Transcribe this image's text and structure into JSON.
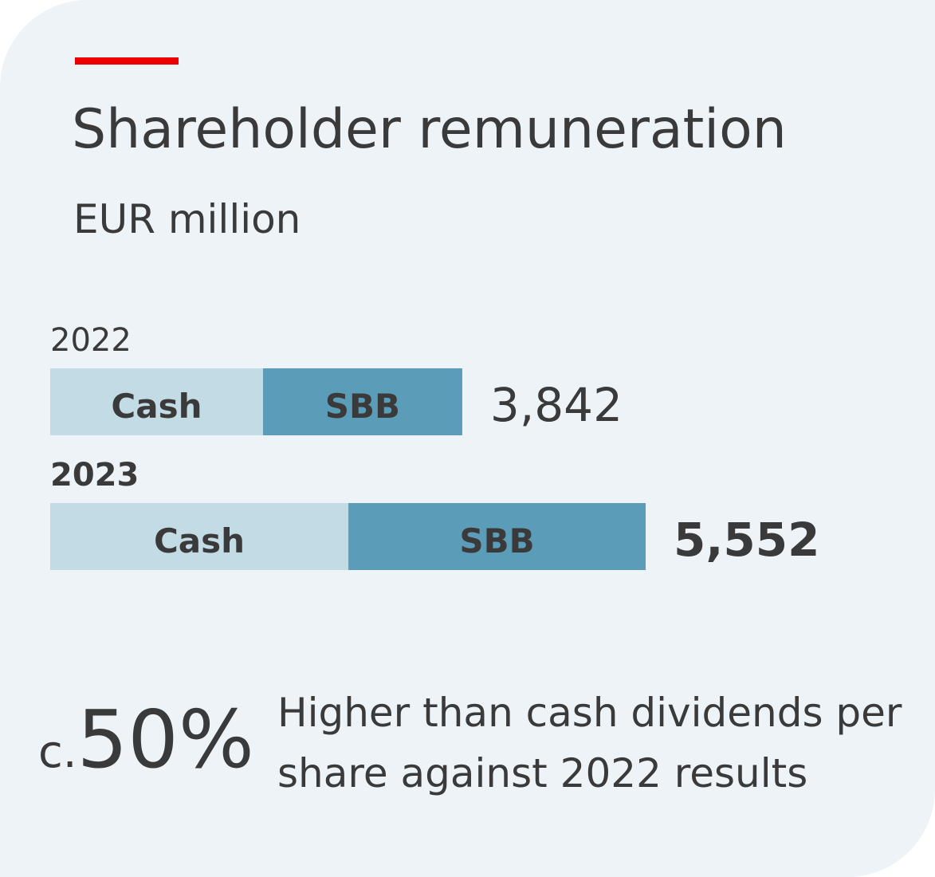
{
  "chart_data": {
    "type": "stacked-bar-horizontal",
    "title": "Shareholder remuneration",
    "subtitle": "EUR million",
    "categories": [
      "2022",
      "2023"
    ],
    "series": [
      {
        "name": "Cash",
        "color": "#c2dbe5",
        "values": [
          1984,
          2780
        ]
      },
      {
        "name": "SBB",
        "color": "#5b9db9",
        "values": [
          1858,
          2772
        ]
      }
    ],
    "totals": {
      "values": [
        3842,
        5552
      ],
      "value_labels": [
        "3,842",
        "5,552"
      ]
    },
    "annotation": {
      "prefix": "c.",
      "figure": "50%",
      "text": "Higher than cash dividends per share against 2022 results"
    }
  }
}
